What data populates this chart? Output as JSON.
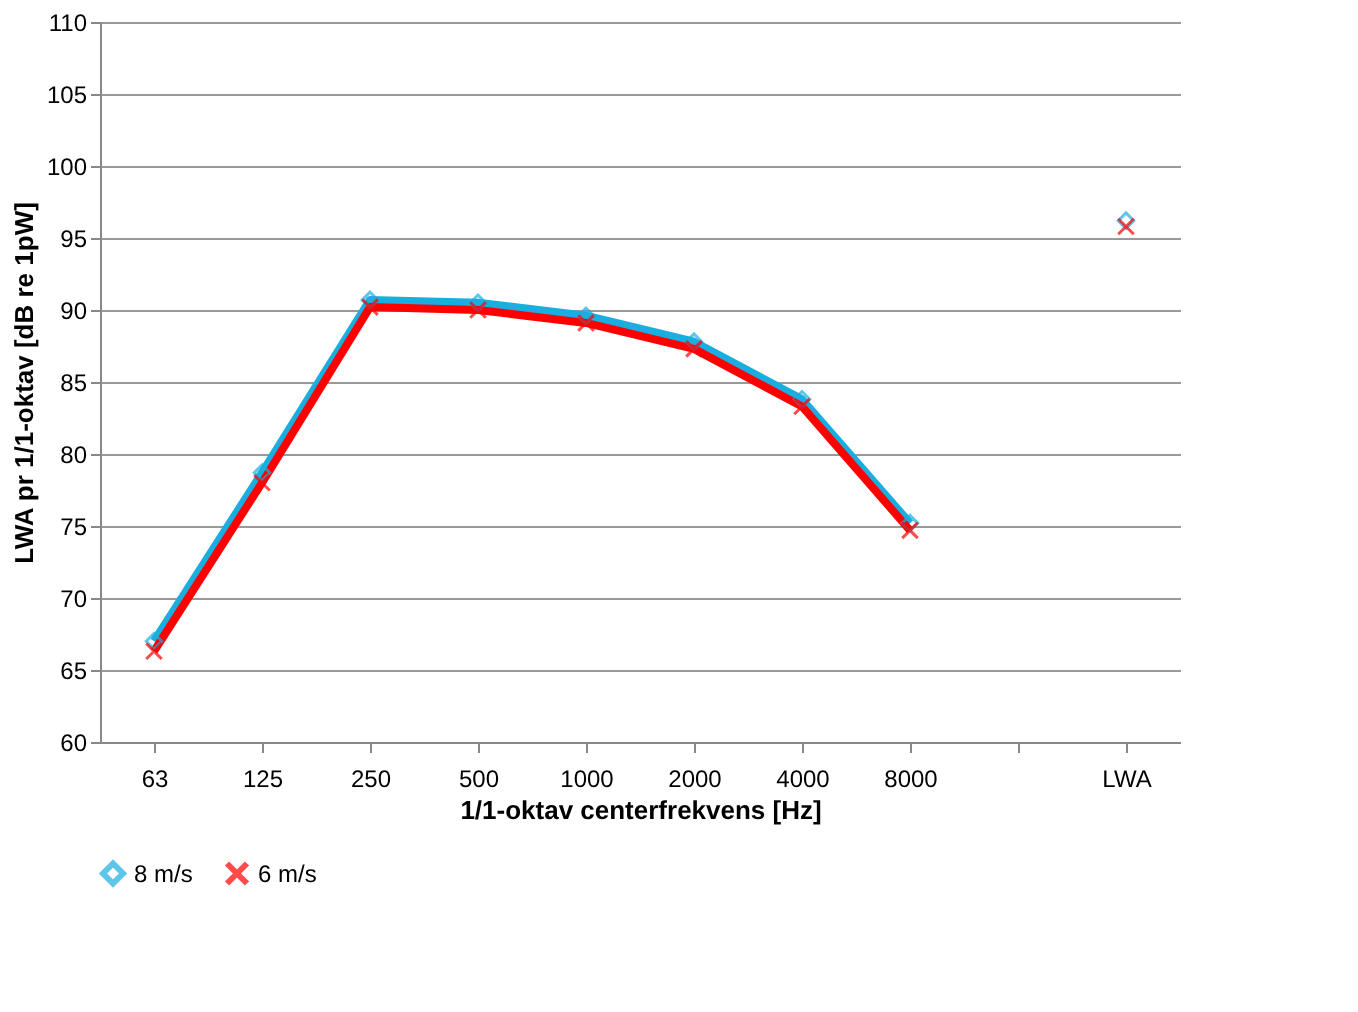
{
  "chart_data": {
    "type": "line",
    "xlabel": "1/1-oktav centerfrekvens [Hz]",
    "ylabel": "LWA pr 1/1-oktav [dB re 1pW]",
    "categories": [
      "63",
      "125",
      "250",
      "500",
      "1000",
      "2000",
      "4000",
      "8000",
      null,
      "LWA"
    ],
    "series": [
      {
        "name": "8 m/s",
        "color": "#1aaee0",
        "marker": "diamond",
        "values": [
          67.0,
          78.7,
          90.7,
          90.5,
          89.6,
          87.8,
          83.8,
          75.2,
          null,
          96.2
        ]
      },
      {
        "name": "6 m/s",
        "color": "#ff0000",
        "marker": "cross",
        "values": [
          66.3,
          78.0,
          90.2,
          90.0,
          89.1,
          87.3,
          83.3,
          74.7,
          null,
          95.8
        ]
      }
    ],
    "ylim": [
      60,
      110
    ],
    "yticks": [
      60,
      65,
      70,
      75,
      80,
      85,
      90,
      95,
      100,
      105,
      110
    ],
    "grid": "y",
    "legend": "bottom"
  }
}
